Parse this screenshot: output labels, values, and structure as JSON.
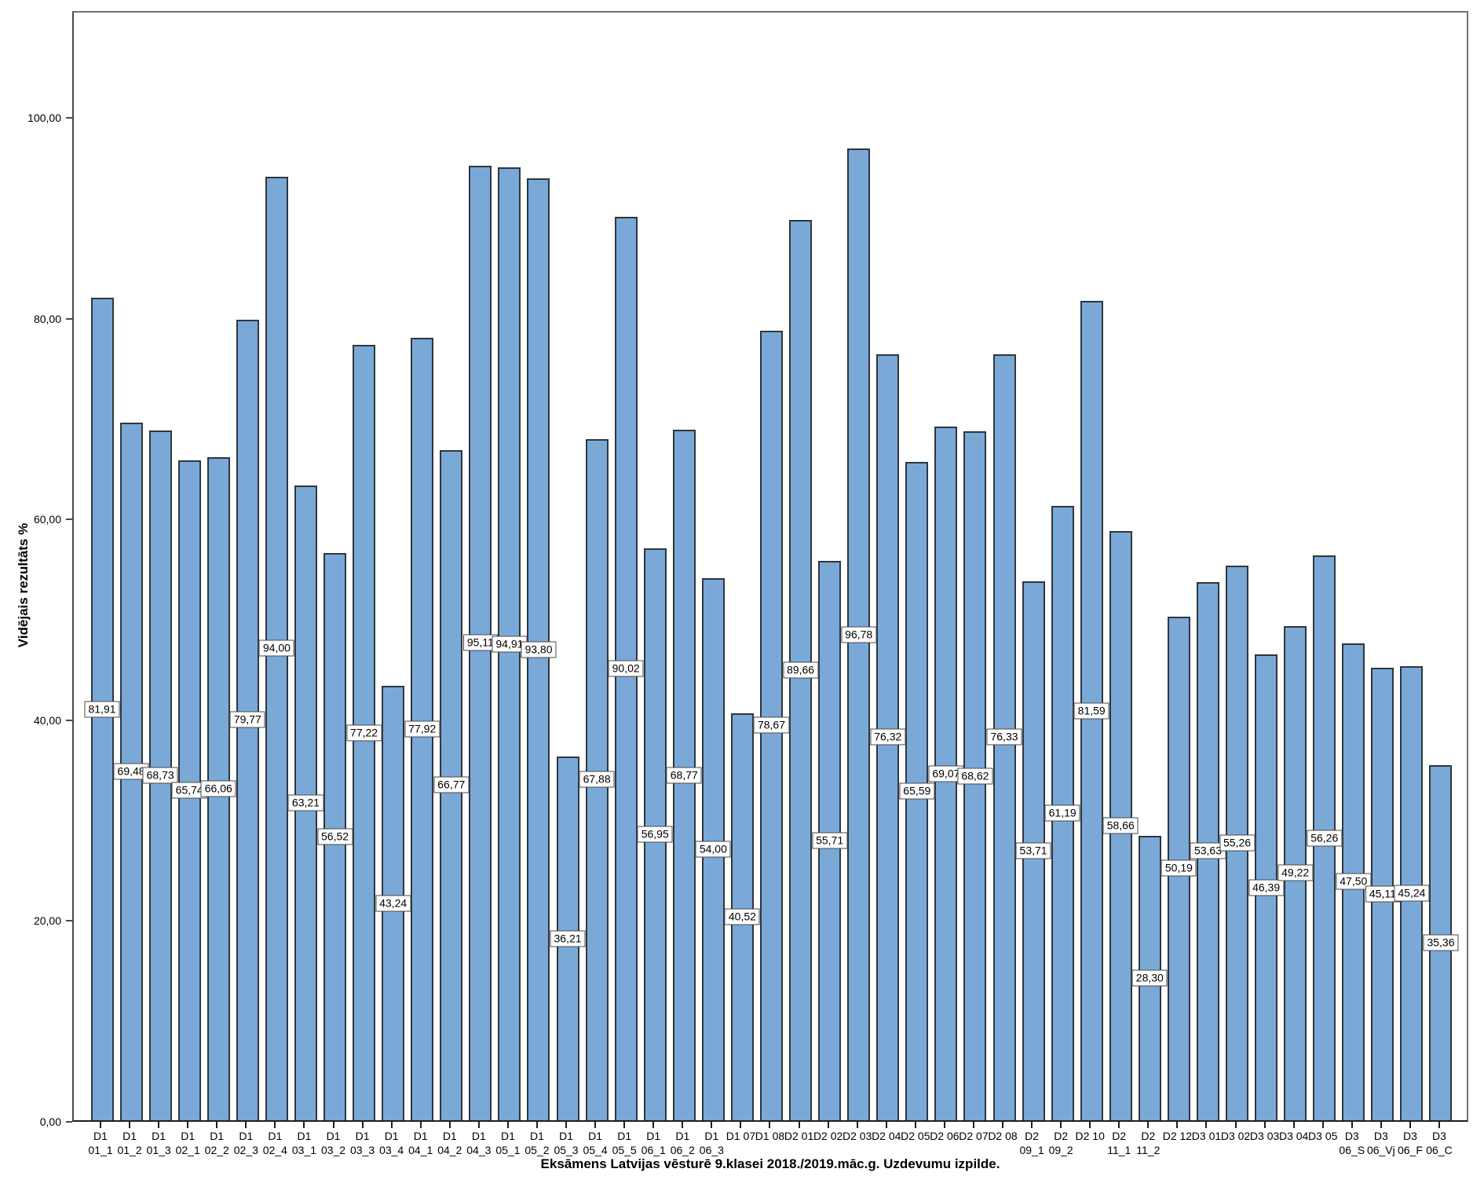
{
  "chart": {
    "title": "Eksāmens Latvijas vēsturē 9.klasei 2018./2019.māc.g. Uzdevumu izpilde.",
    "y_axis_title": "Vidējais rezultāts %",
    "colors": {
      "bar_fill": "#7AA9D7",
      "bar_border": "#2f363c",
      "frame_border": "#717171",
      "axis_line": "#1f1f1f",
      "label_box_bg": "#ffffff",
      "label_box_border": "#4a4a4a",
      "text": "#000000",
      "background": "#ffffff"
    }
  },
  "chart_data": {
    "type": "bar",
    "title": "Eksāmens Latvijas vēsturē 9.klasei 2018./2019.māc.g. Uzdevumu izpilde.",
    "xlabel": "",
    "ylabel": "Vidējais rezultāts %",
    "ylim": [
      0,
      110.6
    ],
    "y_ticks": [
      0,
      20,
      40,
      60,
      80,
      100
    ],
    "y_tick_labels": [
      "0,00",
      "20,00",
      "40,00",
      "60,00",
      "80,00",
      "100,00"
    ],
    "grid": false,
    "legend": false,
    "bar_color": "#7AA9D7",
    "value_label_style": "boxed, centered at bar middle, decimal comma",
    "categories": [
      "D1\n01_1",
      "D1\n01_2",
      "D1\n01_3",
      "D1\n02_1",
      "D1\n02_2",
      "D1\n02_3",
      "D1\n02_4",
      "D1\n03_1",
      "D1\n03_2",
      "D1\n03_3",
      "D1\n03_4",
      "D1\n04_1",
      "D1\n04_2",
      "D1\n04_3",
      "D1\n05_1",
      "D1\n05_2",
      "D1\n05_3",
      "D1\n05_4",
      "D1\n05_5",
      "D1\n06_1",
      "D1\n06_2",
      "D1\n06_3",
      "D1 07",
      "D1 08",
      "D2 01",
      "D2 02",
      "D2 03",
      "D2 04",
      "D2 05",
      "D2 06",
      "D2 07",
      "D2 08",
      "D2\n09_1",
      "D2\n09_2",
      "D2 10",
      "D2\n11_1",
      "D2\n11_2",
      "D2 12",
      "D3 01",
      "D3 02",
      "D3 03",
      "D3 04",
      "D3 05",
      "D3\n06_S",
      "D3\n06_Vj",
      "D3\n06_F",
      "D3\n06_C"
    ],
    "values": [
      81.91,
      69.48,
      68.73,
      65.74,
      66.06,
      79.77,
      94.0,
      63.21,
      56.52,
      77.22,
      43.24,
      77.92,
      66.77,
      95.11,
      94.91,
      93.8,
      36.21,
      67.88,
      90.02,
      56.95,
      68.77,
      54.0,
      40.52,
      78.67,
      89.66,
      55.71,
      96.78,
      76.32,
      65.59,
      69.07,
      68.62,
      76.33,
      53.71,
      61.19,
      81.59,
      58.66,
      28.3,
      50.19,
      53.63,
      55.26,
      46.39,
      49.22,
      56.26,
      47.5,
      45.11,
      45.24,
      35.36
    ]
  }
}
